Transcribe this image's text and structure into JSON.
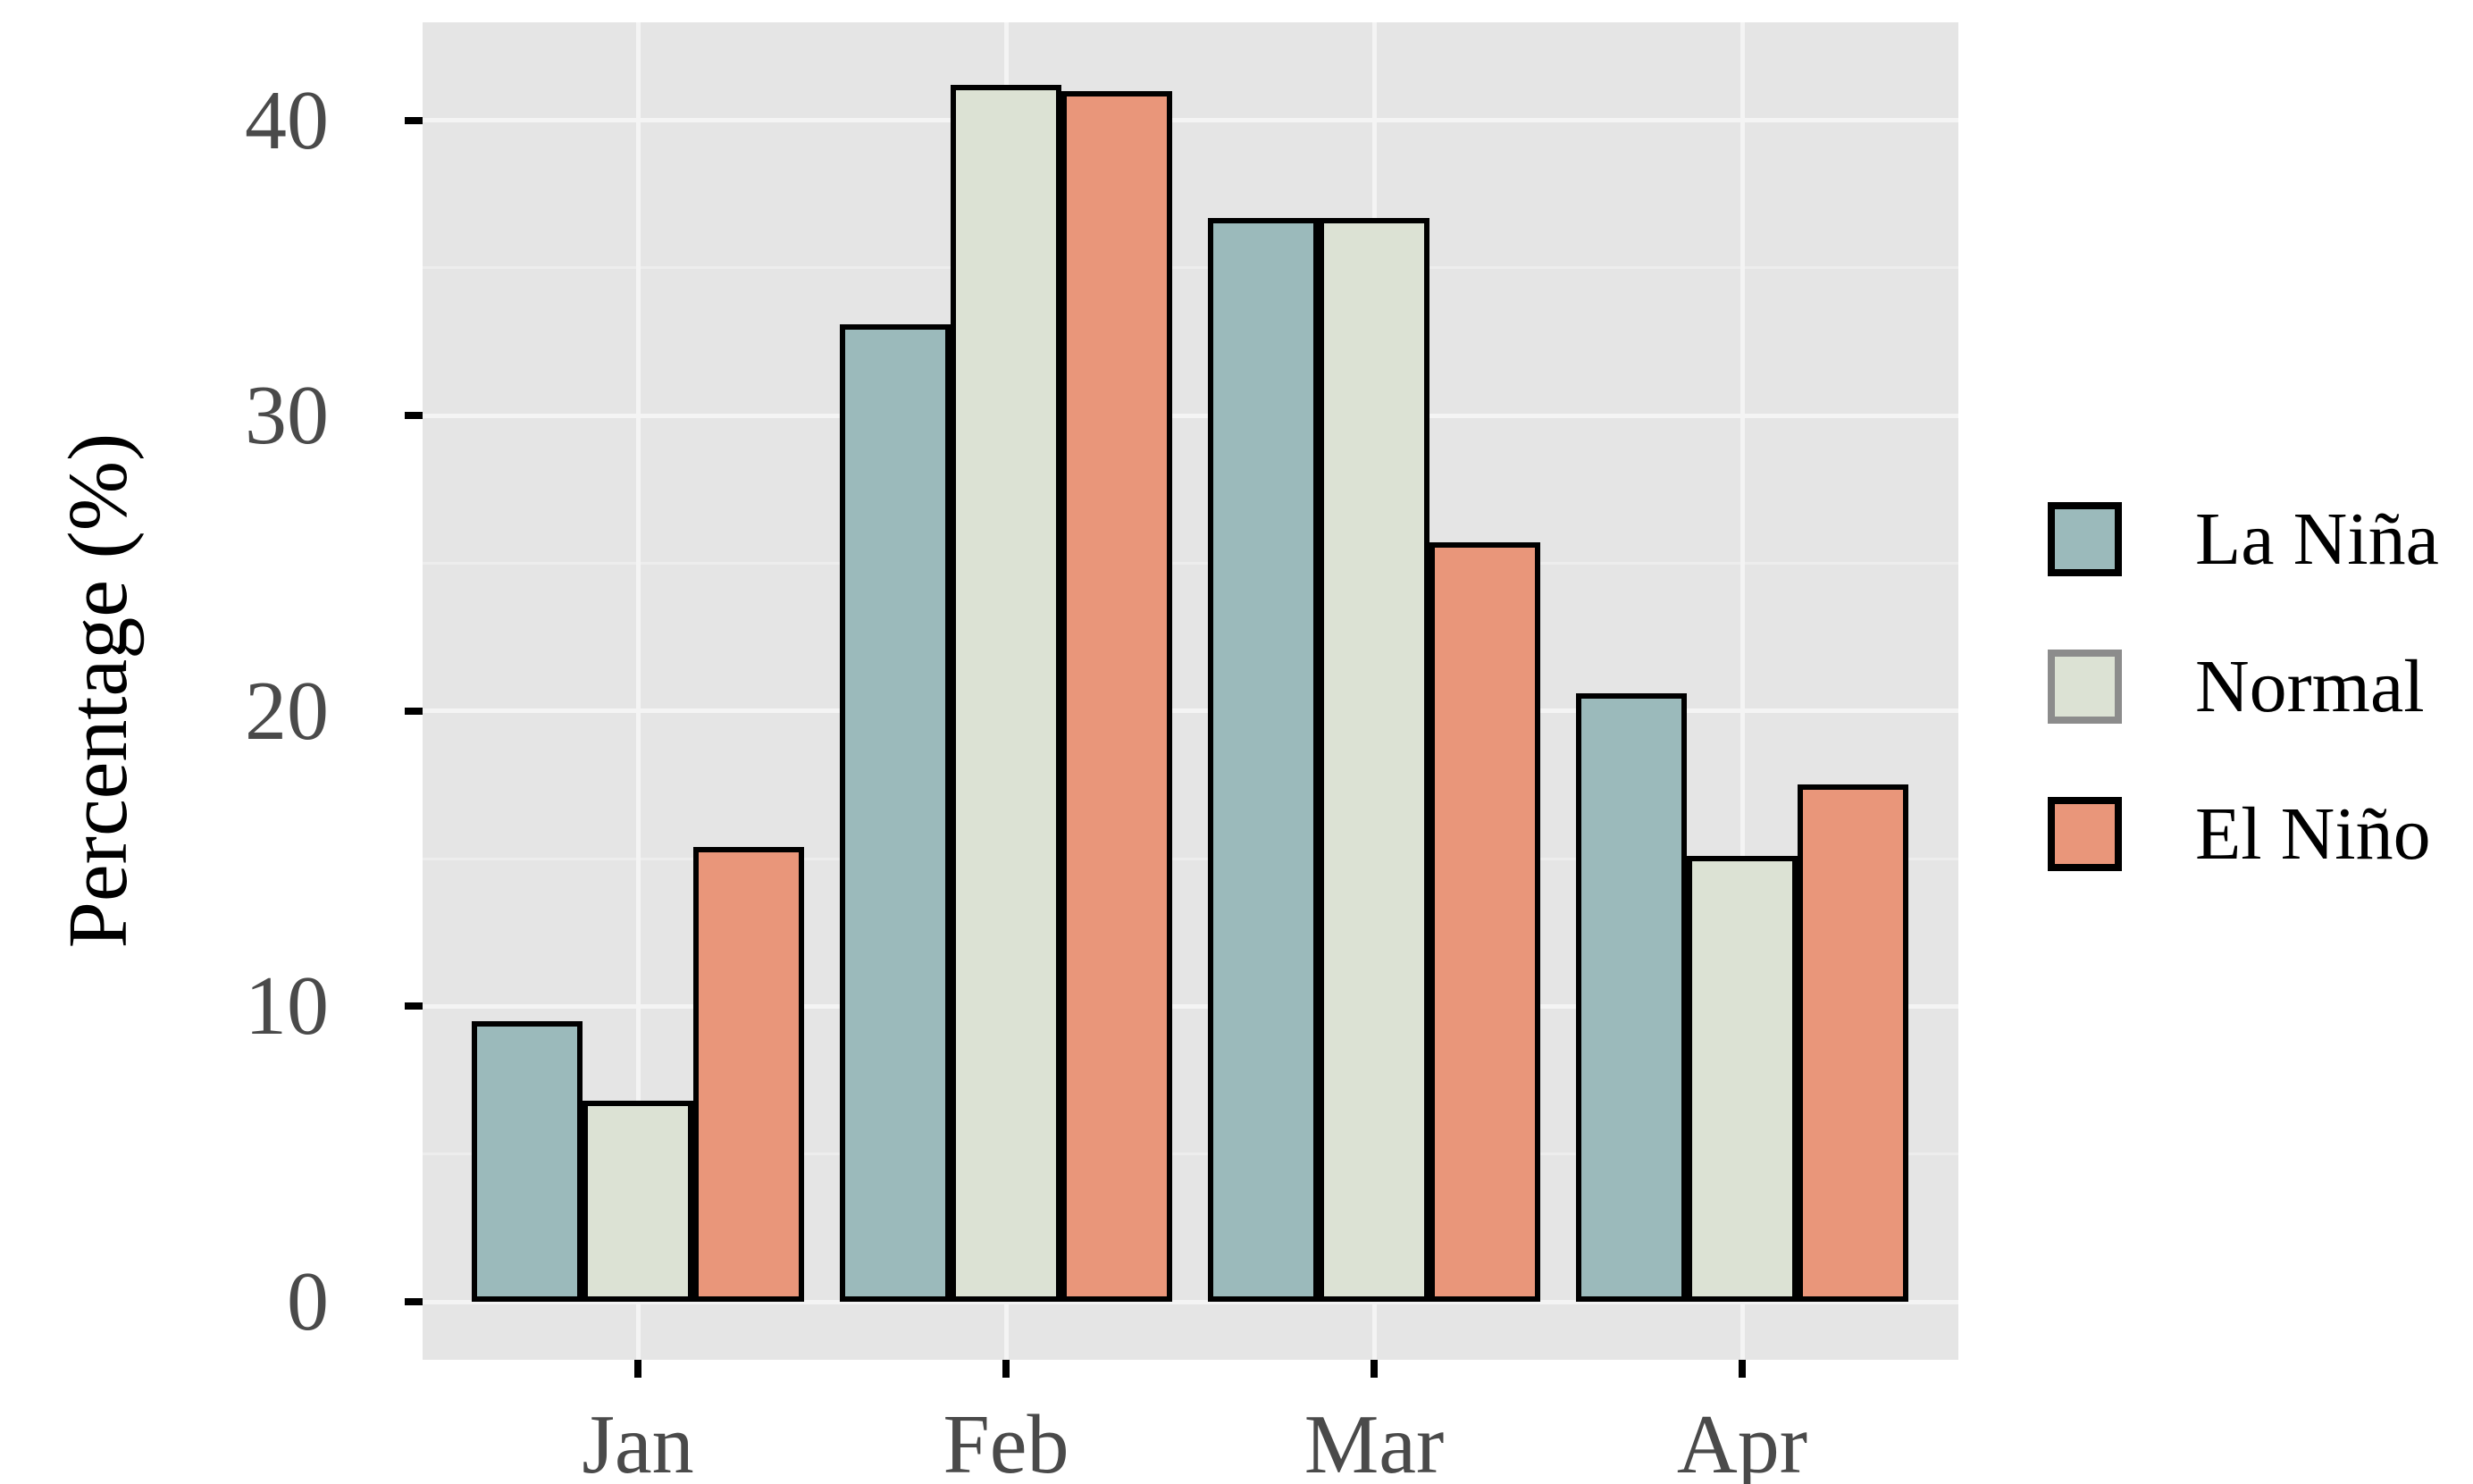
{
  "figure": {
    "background": "#FFFFFF",
    "panel_background": "#E5E5E5",
    "gridline_major_color": "#F4F4F4",
    "gridline_minor_color": "#EDEDED",
    "tick_color": "#000000",
    "tick_label_color": "#4A4A4A"
  },
  "chart_data": {
    "type": "bar",
    "title": "",
    "xlabel": "",
    "ylabel": "Percentage (%)",
    "categories": [
      "Jan",
      "Feb",
      "Mar",
      "Apr"
    ],
    "series": [
      {
        "name": "La Niña",
        "fill": "#9BBABB",
        "legend_border": "#000000",
        "values": [
          9.5,
          33.1,
          36.7,
          20.6
        ]
      },
      {
        "name": "Normal",
        "fill": "#DCE2D4",
        "legend_border": "#8C8C8C",
        "values": [
          6.8,
          41.2,
          36.7,
          15.1
        ]
      },
      {
        "name": "El Niño",
        "fill": "#E9967A",
        "legend_border": "#000000",
        "values": [
          15.4,
          41.0,
          25.7,
          17.5
        ]
      }
    ],
    "bar_border_color": "#000000",
    "yticks": [
      0,
      10,
      20,
      30,
      40
    ],
    "yminor": [
      5,
      15,
      25,
      35
    ],
    "ylim": [
      -2,
      43.3
    ],
    "grid": true,
    "legend_position": "right"
  }
}
